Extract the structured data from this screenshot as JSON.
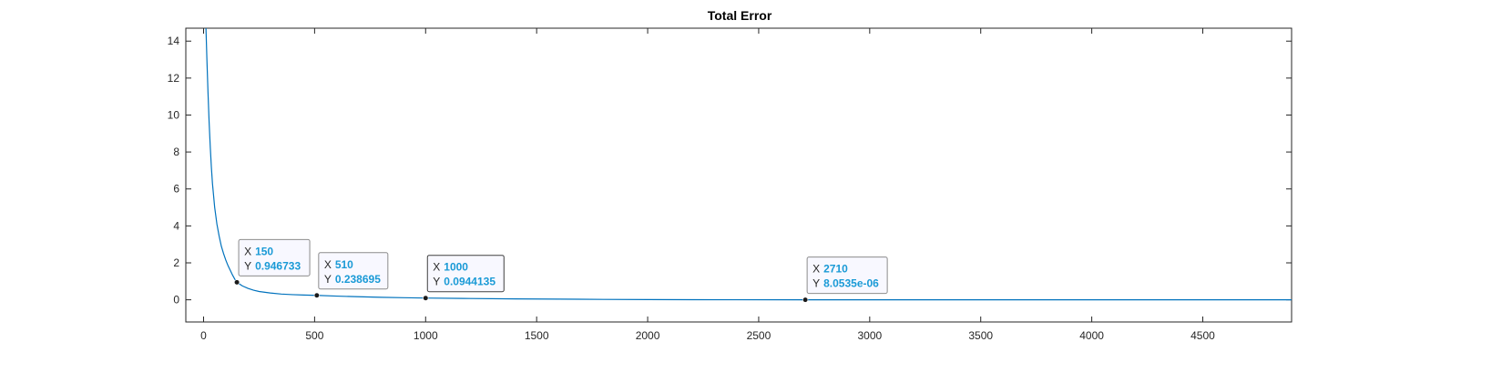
{
  "chart_data": {
    "type": "line",
    "title": "Total Error",
    "xlabel": "",
    "ylabel": "",
    "xlim": [
      -80,
      4900
    ],
    "ylim": [
      -1.2,
      14.7
    ],
    "xticks": [
      0,
      500,
      1000,
      1500,
      2000,
      2500,
      3000,
      3500,
      4000,
      4500
    ],
    "yticks": [
      0,
      2,
      4,
      6,
      8,
      10,
      12,
      14
    ],
    "grid": false,
    "series": [
      {
        "color": "#0072bd",
        "x": [
          10,
          12,
          15,
          20,
          25,
          30,
          35,
          40,
          50,
          60,
          70,
          80,
          90,
          100,
          110,
          120,
          130,
          140,
          150,
          175,
          200,
          225,
          250,
          300,
          350,
          400,
          450,
          510,
          600,
          700,
          800,
          900,
          1000,
          1200,
          1400,
          1600,
          1800,
          2000,
          2200,
          2400,
          2710,
          3000,
          3500,
          4000,
          4500,
          4900
        ],
        "y": [
          15.0,
          14.2,
          13.0,
          11.2,
          9.6,
          8.3,
          7.2,
          6.3,
          5.0,
          4.1,
          3.45,
          2.9,
          2.5,
          2.15,
          1.85,
          1.6,
          1.35,
          1.13,
          0.946733,
          0.75,
          0.62,
          0.52,
          0.45,
          0.37,
          0.31,
          0.28,
          0.26,
          0.238695,
          0.2,
          0.165,
          0.135,
          0.113,
          0.0944135,
          0.07,
          0.05,
          0.035,
          0.022,
          0.013,
          0.007,
          0.003,
          8.0535e-06,
          8.0535e-06,
          8.0535e-06,
          8.0535e-06,
          8.0535e-06,
          8.0535e-06
        ]
      }
    ],
    "datatips": [
      {
        "x_label": "X",
        "y_label": "Y",
        "x": "150",
        "y": "0.946733",
        "xv": 150,
        "yv": 0.946733
      },
      {
        "x_label": "X",
        "y_label": "Y",
        "x": "510",
        "y": "0.238695",
        "xv": 510,
        "yv": 0.238695
      },
      {
        "x_label": "X",
        "y_label": "Y",
        "x": "1000",
        "y": "0.0944135",
        "xv": 1000,
        "yv": 0.0944135
      },
      {
        "x_label": "X",
        "y_label": "Y",
        "x": "2710",
        "y": "8.0535e-06",
        "xv": 2710,
        "yv": 8.0535e-06
      }
    ],
    "colors": {
      "axes": "#262626",
      "tip_value": "#1a9ad6",
      "tip_border": "#8c8c8c",
      "tip_border_active": "#404040",
      "tip_fill": "#f8f8ff"
    }
  }
}
